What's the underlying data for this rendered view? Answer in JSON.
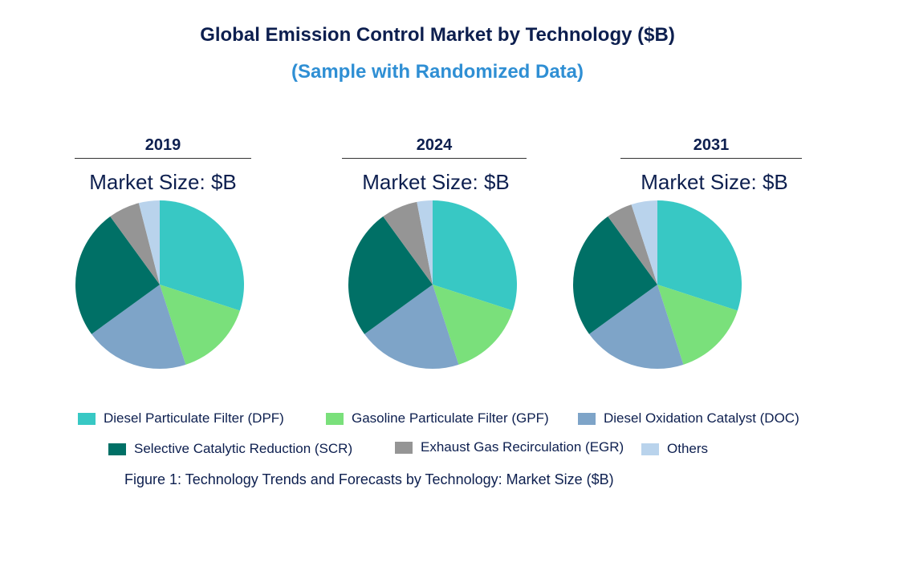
{
  "chart_data": {
    "type": "pie",
    "title": "Global Emission Control Market by Technology ($B)",
    "subtitle": "(Sample with Randomized Data)",
    "caption": "Figure 1: Technology Trends and Forecasts by Technology: Market Size ($B)",
    "categories": [
      "Diesel Particulate Filter (DPF)",
      "Gasoline Particulate Filter (GPF)",
      "Diesel Oxidation Catalyst (DOC)",
      "Selective Catalytic Reduction (SCR)",
      "Exhaust Gas Recirculation (EGR)",
      "Others"
    ],
    "colors": [
      "#38c8c4",
      "#7ae07b",
      "#7ea4c8",
      "#007066",
      "#959595",
      "#b9d3ec"
    ],
    "legend_position": "bottom",
    "pies": [
      {
        "year": "2019",
        "label": "Market Size: $B",
        "values": [
          30,
          15,
          20,
          25,
          6,
          4
        ]
      },
      {
        "year": "2024",
        "label": "Market Size: $B",
        "values": [
          30,
          15,
          20,
          25,
          7,
          3
        ]
      },
      {
        "year": "2031",
        "label": "Market Size: $B",
        "values": [
          30,
          15,
          20,
          25,
          5,
          5
        ]
      }
    ]
  }
}
